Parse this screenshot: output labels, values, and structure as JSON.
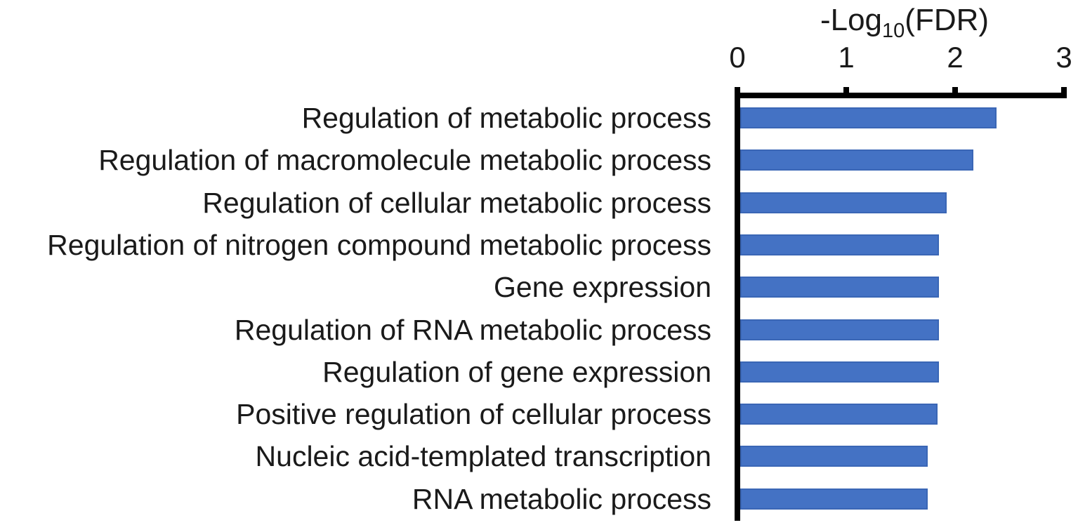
{
  "chart_data": {
    "type": "bar",
    "orientation": "horizontal",
    "title": {
      "prefix": "-Log",
      "subscript": "10",
      "suffix": "(FDR)"
    },
    "xlabel": "-Log10(FDR)",
    "categories": [
      "Regulation of metabolic process",
      "Regulation of macromolecule metabolic process",
      "Regulation of cellular metabolic process",
      "Regulation of nitrogen compound metabolic process",
      "Gene expression",
      "Regulation of RNA metabolic process",
      "Regulation of gene expression",
      "Positive regulation of cellular process",
      "Nucleic acid-templated transcription",
      "RNA metabolic process"
    ],
    "values": [
      2.38,
      2.17,
      1.92,
      1.85,
      1.85,
      1.85,
      1.85,
      1.84,
      1.75,
      1.75
    ],
    "axis": {
      "min": 0,
      "max": 3,
      "ticks": [
        0,
        1,
        2,
        3
      ],
      "position": "top"
    },
    "grid": false,
    "legend": false,
    "bar_color": "#4472C4",
    "bar_border_color": "#3A66B5",
    "axis_color": "#000000",
    "text_color": "#1a1a1a"
  }
}
